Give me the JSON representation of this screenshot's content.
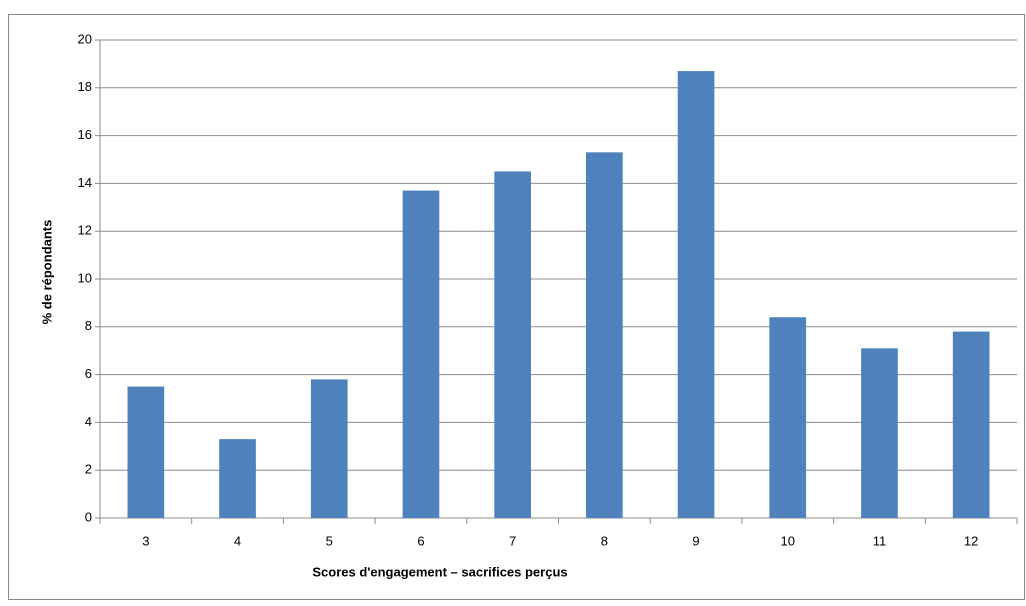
{
  "chart_data": {
    "type": "bar",
    "x_label": "Scores d'engagement – sacrifices perçus",
    "y_label": "% de répondants",
    "categories": [
      "3",
      "4",
      "5",
      "6",
      "7",
      "8",
      "9",
      "10",
      "11",
      "12"
    ],
    "values": [
      5.5,
      3.3,
      5.8,
      13.7,
      14.5,
      15.3,
      18.7,
      8.4,
      7.1,
      7.8
    ],
    "color": "#4f81bd",
    "ylim": [
      0,
      20
    ],
    "yticks": [
      0,
      2,
      4,
      6,
      8,
      10,
      12,
      14,
      16,
      18,
      20
    ],
    "grid": true
  }
}
